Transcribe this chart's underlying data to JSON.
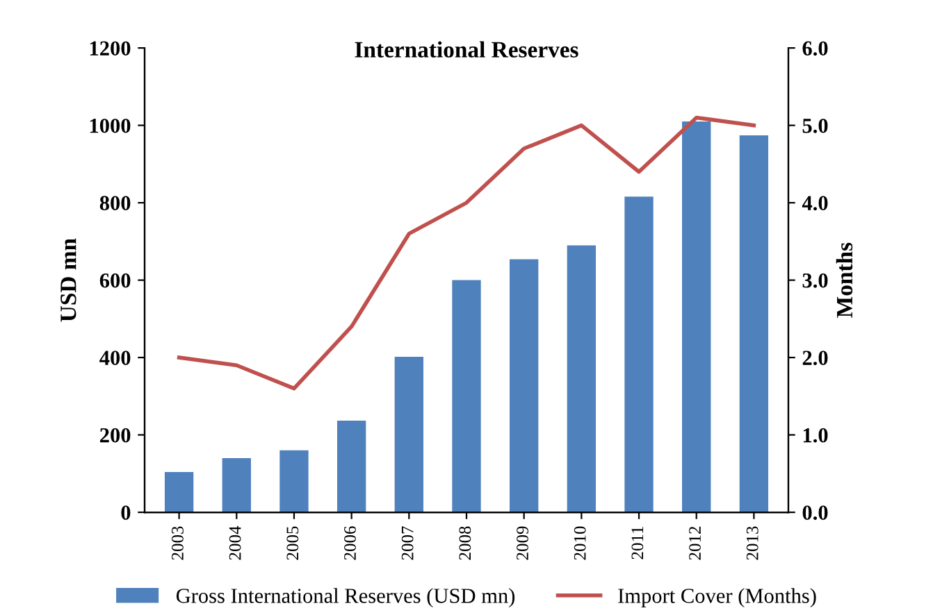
{
  "chart_data": {
    "type": "bar",
    "title": "International Reserves",
    "ylabel": "USD mn",
    "y2label": "Months",
    "categories": [
      "2003",
      "2004",
      "2005",
      "2006",
      "2007",
      "2008",
      "2009",
      "2010",
      "2011",
      "2012",
      "2013"
    ],
    "series": [
      {
        "name": "Gross International Reserves (USD mn)",
        "color": "#4f81bd",
        "values": [
          104,
          140,
          160,
          237,
          402,
          600,
          654,
          690,
          816,
          1010,
          974
        ]
      },
      {
        "name": "Import Cover (Months)",
        "type": "line",
        "axis": "y2",
        "color": "#c0504d",
        "values": [
          2.0,
          1.9,
          1.6,
          2.4,
          3.6,
          4.0,
          4.7,
          5.0,
          4.4,
          5.1,
          5.0
        ]
      }
    ],
    "ylim": [
      0,
      1200
    ],
    "yticks": [
      0,
      200,
      400,
      600,
      800,
      1000,
      1200
    ],
    "y2lim": [
      0,
      6
    ],
    "y2ticks": [
      {
        "value": 0,
        "label": "0.0"
      },
      {
        "value": 1,
        "label": "1.0"
      },
      {
        "value": 2,
        "label": "2.0"
      },
      {
        "value": 3,
        "label": "3.0"
      },
      {
        "value": 4,
        "label": "4.0"
      },
      {
        "value": 5,
        "label": "5.0"
      },
      {
        "value": 6,
        "label": "6.0"
      }
    ],
    "legend": "bottom",
    "grid": false
  }
}
